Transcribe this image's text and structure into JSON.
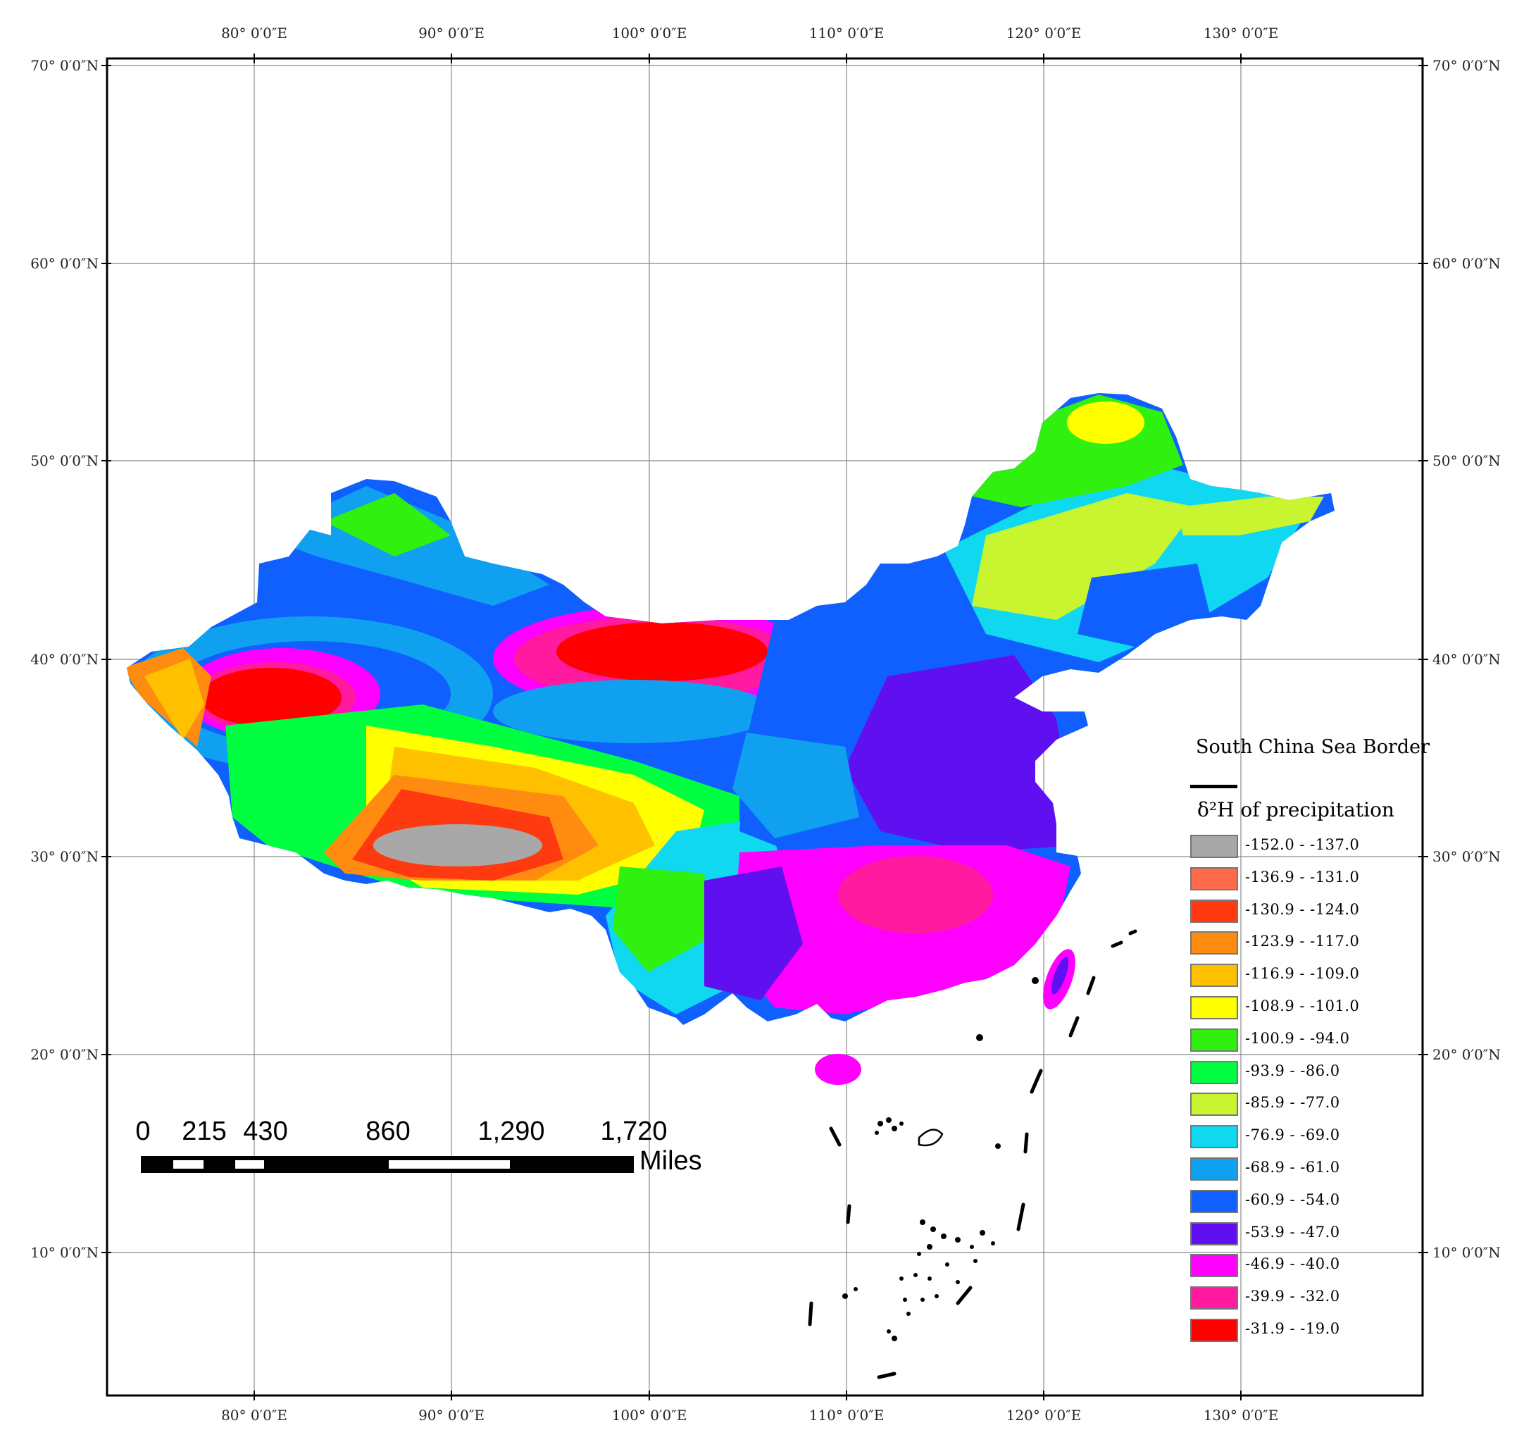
{
  "map": {
    "type": "isotope precipitation map of China",
    "graticule": {
      "longitude_labels": [
        "80° 0′0″E",
        "90° 0′0″E",
        "100° 0′0″E",
        "110° 0′0″E",
        "120° 0′0″E",
        "130° 0′0″E"
      ],
      "latitude_labels": [
        "70° 0′0″N",
        "60° 0′0″N",
        "50° 0′0″N",
        "40° 0′0″N",
        "30° 0′0″N",
        "20° 0′0″N",
        "10° 0′0″N"
      ]
    }
  },
  "legend": {
    "border_title": "South China Sea Border",
    "title": "δ²H of precipitation",
    "items": [
      {
        "label": "-152.0 - -137.0",
        "color": "#a8a8a8"
      },
      {
        "label": "-136.9 - -131.0",
        "color": "#ff6a4a"
      },
      {
        "label": "-130.9 - -124.0",
        "color": "#ff3a10"
      },
      {
        "label": "-123.9 - -117.0",
        "color": "#ff8c10"
      },
      {
        "label": "-116.9 - -109.0",
        "color": "#ffc000"
      },
      {
        "label": "-108.9 - -101.0",
        "color": "#ffff00"
      },
      {
        "label": "-100.9 - -94.0",
        "color": "#30f010"
      },
      {
        "label": "-93.9 - -86.0",
        "color": "#00ff40"
      },
      {
        "label": "-85.9 - -77.0",
        "color": "#c8f530"
      },
      {
        "label": "-76.9 - -69.0",
        "color": "#10d8f0"
      },
      {
        "label": "-68.9 - -61.0",
        "color": "#10a0f0"
      },
      {
        "label": "-60.9 - -54.0",
        "color": "#1060ff"
      },
      {
        "label": "-53.9 - -47.0",
        "color": "#6010f0"
      },
      {
        "label": "-46.9 - -40.0",
        "color": "#ff00ff"
      },
      {
        "label": "-39.9 - -32.0",
        "color": "#ff1aa0"
      },
      {
        "label": "-31.9 - -19.0",
        "color": "#ff0000"
      }
    ]
  },
  "scale_bar": {
    "labels": [
      "0",
      "215",
      "430",
      "860",
      "1,290",
      "1,720"
    ],
    "units": "Miles"
  }
}
